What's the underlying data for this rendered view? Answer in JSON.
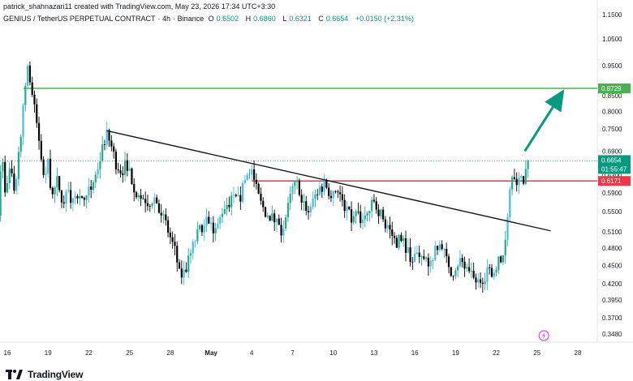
{
  "header": {
    "credit": "patrick_shahnazari11 created with TradingView.com, May 23, 2026 17:34 UTC+3:30",
    "symbol": "GENIUS / TetherUS PERPETUAL CONTRACT",
    "interval": "4h",
    "exchange": "Binance",
    "ohlc": [
      {
        "label": "O",
        "value": "0.6502"
      },
      {
        "label": "H",
        "value": "0.6860"
      },
      {
        "label": "L",
        "value": "0.6321"
      },
      {
        "label": "C",
        "value": "0.6654"
      },
      {
        "label": "",
        "value": "+0.0150 (+2.31%)"
      }
    ]
  },
  "footer": {
    "brand": "TradingView"
  },
  "colors": {
    "up": "#22ab94",
    "up_alt": "#42bde8",
    "down": "#000000",
    "target": "#4caf50",
    "resistance": "#f23645",
    "trend": "#131722",
    "arrow": "#089981"
  },
  "chart_data": {
    "type": "candlestick",
    "symbol": "GENIUS / TetherUS PERPETUAL CONTRACT",
    "interval": "4h",
    "y_axis": {
      "scale": "log",
      "ticks": [
        "1.1500",
        "1.0500",
        "0.9500",
        "0.8500",
        "0.8000",
        "0.7500",
        "0.6900",
        "0.6300",
        "0.5900",
        "0.5500",
        "0.5100",
        "0.4800",
        "0.4500",
        "0.4200",
        "0.3950",
        "0.3700",
        "0.3480"
      ]
    },
    "x_axis": {
      "ticks": [
        "16",
        "19",
        "22",
        "25",
        "28",
        "May",
        "4",
        "7",
        "10",
        "13",
        "16",
        "19",
        "22",
        "25",
        "28"
      ],
      "tick_days": [
        16,
        19,
        22,
        25,
        28,
        31,
        34,
        37,
        40,
        43,
        46,
        49,
        52,
        55,
        58
      ]
    },
    "price_labels": [
      {
        "text": "0.8729",
        "value": 0.8729,
        "color": "#4caf50"
      },
      {
        "text": "0.6654",
        "value": 0.6654,
        "color": "#089981"
      },
      {
        "text": "01:55:47",
        "value": 0.65,
        "color": "#089981"
      },
      {
        "text": "0.6171",
        "value": 0.6171,
        "color": "#f23645"
      }
    ],
    "horizontal_lines": [
      {
        "name": "target",
        "value": 0.8729,
        "from_day": 17.2,
        "color": "#4caf50"
      },
      {
        "name": "resistance",
        "value": 0.6171,
        "from_day": 34.0,
        "color": "#f23645"
      }
    ],
    "trendline": {
      "from": {
        "day": 23.3,
        "price": 0.745
      },
      "to": {
        "day": 56.0,
        "price": 0.512
      }
    },
    "arrow": {
      "from": {
        "day": 54.1,
        "price": 0.69
      },
      "to": {
        "day": 57.0,
        "price": 0.87
      }
    },
    "current_price_line": 0.6654,
    "event_icon": "lightning-icon",
    "close_path": [
      [
        15.0,
        0.66
      ],
      [
        15.3,
        0.53
      ],
      [
        15.6,
        0.7
      ],
      [
        15.9,
        0.58
      ],
      [
        16.2,
        0.64
      ],
      [
        16.5,
        0.6
      ],
      [
        16.8,
        0.66
      ],
      [
        17.2,
        0.84
      ],
      [
        17.5,
        0.95
      ],
      [
        17.8,
        0.86
      ],
      [
        18.1,
        0.78
      ],
      [
        18.4,
        0.7
      ],
      [
        18.7,
        0.62
      ],
      [
        19.0,
        0.66
      ],
      [
        19.3,
        0.58
      ],
      [
        19.7,
        0.62
      ],
      [
        20.1,
        0.57
      ],
      [
        20.5,
        0.6
      ],
      [
        20.9,
        0.56
      ],
      [
        21.3,
        0.6
      ],
      [
        21.7,
        0.56
      ],
      [
        22.1,
        0.6
      ],
      [
        22.5,
        0.63
      ],
      [
        22.9,
        0.68
      ],
      [
        23.3,
        0.74
      ],
      [
        23.6,
        0.71
      ],
      [
        24.0,
        0.66
      ],
      [
        24.4,
        0.64
      ],
      [
        24.8,
        0.66
      ],
      [
        25.2,
        0.62
      ],
      [
        25.6,
        0.58
      ],
      [
        26.0,
        0.58
      ],
      [
        26.4,
        0.57
      ],
      [
        26.8,
        0.58
      ],
      [
        27.2,
        0.56
      ],
      [
        27.6,
        0.53
      ],
      [
        28.0,
        0.5
      ],
      [
        28.4,
        0.47
      ],
      [
        28.7,
        0.43
      ],
      [
        29.1,
        0.44
      ],
      [
        29.5,
        0.47
      ],
      [
        29.9,
        0.5
      ],
      [
        30.3,
        0.52
      ],
      [
        30.7,
        0.55
      ],
      [
        31.1,
        0.51
      ],
      [
        31.5,
        0.52
      ],
      [
        31.9,
        0.56
      ],
      [
        32.3,
        0.57
      ],
      [
        32.7,
        0.58
      ],
      [
        33.1,
        0.57
      ],
      [
        33.5,
        0.62
      ],
      [
        33.9,
        0.65
      ],
      [
        34.3,
        0.6
      ],
      [
        34.6,
        0.57
      ],
      [
        35.0,
        0.55
      ],
      [
        35.4,
        0.54
      ],
      [
        35.8,
        0.53
      ],
      [
        36.2,
        0.51
      ],
      [
        36.6,
        0.55
      ],
      [
        37.0,
        0.6
      ],
      [
        37.4,
        0.61
      ],
      [
        37.8,
        0.57
      ],
      [
        38.2,
        0.55
      ],
      [
        38.6,
        0.58
      ],
      [
        39.0,
        0.6
      ],
      [
        39.4,
        0.61
      ],
      [
        39.8,
        0.59
      ],
      [
        40.2,
        0.6
      ],
      [
        40.6,
        0.58
      ],
      [
        41.0,
        0.55
      ],
      [
        41.4,
        0.53
      ],
      [
        41.8,
        0.55
      ],
      [
        42.2,
        0.53
      ],
      [
        42.6,
        0.55
      ],
      [
        43.0,
        0.57
      ],
      [
        43.4,
        0.55
      ],
      [
        43.8,
        0.53
      ],
      [
        44.2,
        0.51
      ],
      [
        44.6,
        0.49
      ],
      [
        45.0,
        0.5
      ],
      [
        45.4,
        0.48
      ],
      [
        45.8,
        0.46
      ],
      [
        46.2,
        0.47
      ],
      [
        46.6,
        0.46
      ],
      [
        47.0,
        0.45
      ],
      [
        47.4,
        0.47
      ],
      [
        47.8,
        0.48
      ],
      [
        48.2,
        0.47
      ],
      [
        48.6,
        0.43
      ],
      [
        49.0,
        0.45
      ],
      [
        49.4,
        0.46
      ],
      [
        49.8,
        0.44
      ],
      [
        50.2,
        0.43
      ],
      [
        50.6,
        0.42
      ],
      [
        51.0,
        0.43
      ],
      [
        51.4,
        0.44
      ],
      [
        51.8,
        0.44
      ],
      [
        52.1,
        0.46
      ],
      [
        52.4,
        0.45
      ],
      [
        52.7,
        0.51
      ],
      [
        53.0,
        0.6
      ],
      [
        53.2,
        0.65
      ],
      [
        53.4,
        0.63
      ],
      [
        53.6,
        0.61
      ],
      [
        53.8,
        0.64
      ],
      [
        54.0,
        0.62
      ],
      [
        54.2,
        0.6502
      ],
      [
        54.4,
        0.6654
      ]
    ]
  }
}
